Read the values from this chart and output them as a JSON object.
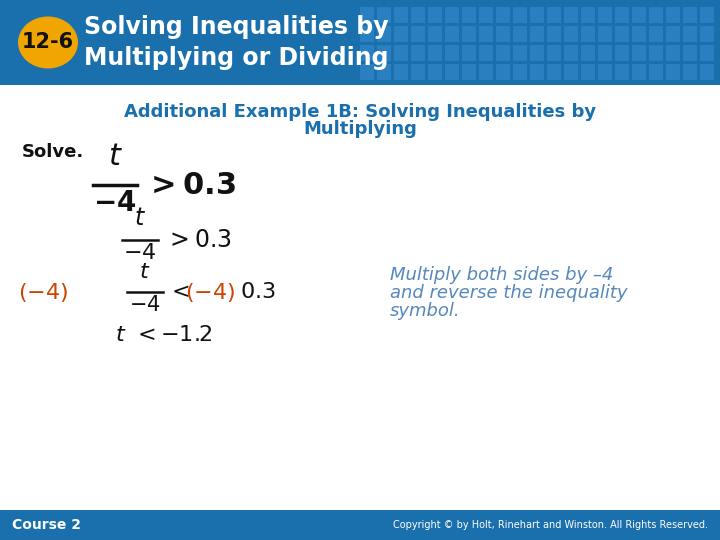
{
  "header_bg_color": "#1a6fad",
  "header_text_color": "#ffffff",
  "badge_color": "#f0a500",
  "badge_text": "12-6",
  "header_line1": "Solving Inequalities by",
  "header_line2": "Multiplying or Dividing",
  "subtitle_color": "#1a6fad",
  "subtitle_line1": "Additional Example 1B: Solving Inequalities by",
  "subtitle_line2": "Multiplying",
  "body_bg_color": "#ffffff",
  "solve_label": "Solve.",
  "footer_bg_color": "#1a6fad",
  "footer_left": "Course 2",
  "footer_right": "Copyright © by Holt, Rinehart and Winston. All Rights Reserved.",
  "orange_color": "#cc4400",
  "blue_italic_color": "#5588bb",
  "black_color": "#111111",
  "grid_color": "#2a7fc0"
}
